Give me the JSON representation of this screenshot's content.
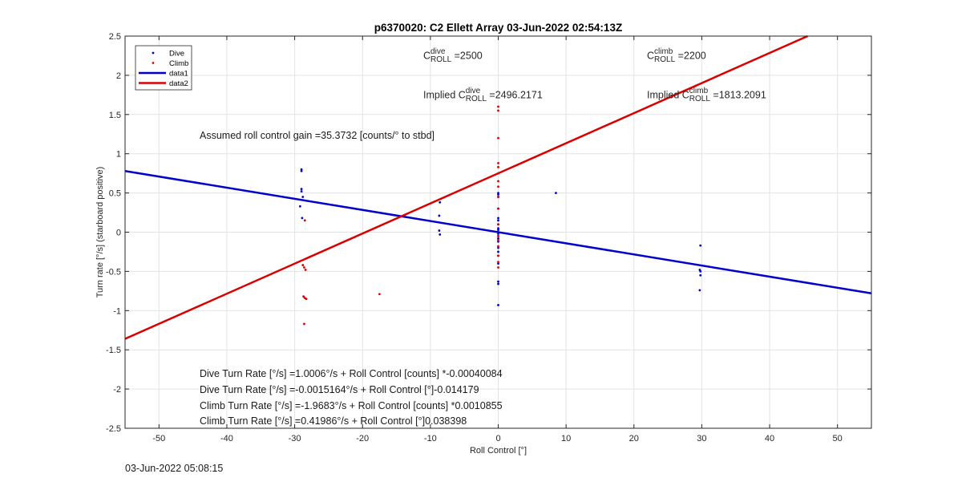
{
  "chart_data": {
    "type": "scatter",
    "title": "p6370020: C2 Ellett Array 03-Jun-2022 02:54:13Z",
    "xlabel": "Roll Control [°]",
    "ylabel": "Turn rate [°/s] (starboard positive)",
    "xlim": [
      -55,
      55
    ],
    "ylim": [
      -2.5,
      2.5
    ],
    "xticks": [
      "-50",
      "-40",
      "-30",
      "-20",
      "-10",
      "0",
      "10",
      "20",
      "30",
      "40",
      "50"
    ],
    "yticks": [
      "-2.5",
      "-2",
      "-1.5",
      "-1",
      "-0.5",
      "0",
      "0.5",
      "1",
      "1.5",
      "2",
      "2.5"
    ],
    "grid": true,
    "legend_position": "top-left",
    "legend": [
      "Dive",
      "Climb",
      "data1",
      "data2"
    ],
    "series": [
      {
        "name": "Dive",
        "kind": "points",
        "color": "#0000cc",
        "x": [
          -29,
          -29,
          -29,
          -29,
          -28.8,
          -29.2,
          -28.9,
          -8.6,
          -8.7,
          -8.7,
          -8.6,
          0,
          0,
          0,
          0,
          0,
          0,
          0,
          0,
          0,
          0,
          0,
          0,
          0,
          0,
          0,
          0,
          0,
          0,
          0,
          0,
          0,
          8.5,
          29.8,
          29.7,
          29.8,
          29.8,
          29.7
        ],
        "y": [
          0.8,
          0.78,
          0.55,
          0.52,
          0.45,
          0.33,
          0.18,
          0.38,
          0.21,
          0.02,
          -0.03,
          0.5,
          0.48,
          0.45,
          0.3,
          0.18,
          0.1,
          0.05,
          0.03,
          0.0,
          -0.02,
          -0.05,
          -0.08,
          -0.12,
          -0.2,
          -0.25,
          -0.3,
          -0.4,
          -0.63,
          -0.66,
          -0.93,
          0.15,
          0.5,
          -0.17,
          -0.48,
          -0.5,
          -0.55,
          -0.74
        ]
      },
      {
        "name": "Climb",
        "kind": "points",
        "color": "#dd0000",
        "x": [
          -28.5,
          -28.8,
          -28.6,
          -28.4,
          -28.7,
          -28.5,
          -28.3,
          -28.6,
          -17.5,
          0,
          0,
          0,
          0,
          0,
          0,
          0,
          0,
          0,
          0,
          0,
          0,
          0,
          0,
          0,
          0,
          0
        ],
        "y": [
          0.15,
          -0.42,
          -0.45,
          -0.48,
          -0.82,
          -0.84,
          -0.85,
          -1.17,
          -0.79,
          1.6,
          1.55,
          1.2,
          0.88,
          0.83,
          0.75,
          0.65,
          0.58,
          0.45,
          0.3,
          0.1,
          -0.05,
          -0.1,
          -0.18,
          -0.3,
          -0.38,
          -0.45
        ]
      },
      {
        "name": "data1",
        "kind": "line",
        "color": "#0000cc",
        "x": [
          -55,
          55
        ],
        "y": [
          0.78,
          -0.78
        ]
      },
      {
        "name": "data2",
        "kind": "line",
        "color": "#d90000",
        "x": [
          -55,
          45.6
        ],
        "y": [
          -1.36,
          2.5
        ]
      }
    ]
  },
  "annotations": {
    "c_dive_label": "C",
    "c_dive_sup": "dive",
    "c_dive_sub": "ROLL",
    "c_dive_val": " =2500",
    "c_climb_label": "C",
    "c_climb_sup": "climb",
    "c_climb_sub": "ROLL",
    "c_climb_val": " =2200",
    "implied_dive_prefix": "Implied C",
    "implied_dive_sup": "dive",
    "implied_dive_sub": "ROLL",
    "implied_dive_val": " =2496.2171",
    "implied_climb_prefix": "Implied C",
    "implied_climb_sup": "climb",
    "implied_climb_sub": "ROLL",
    "implied_climb_val": " =1813.2091",
    "gain": "Assumed roll control gain =35.3732 [counts/° to stbd]",
    "eq1": "Dive Turn Rate [°/s] =1.0006°/s + Roll Control [counts] *-0.00040084",
    "eq2": "Dive Turn Rate [°/s] =-0.0015164°/s + Roll Control [°]-0.014179",
    "eq3": "Climb Turn Rate [°/s] =-1.9683°/s + Roll Control [counts] *0.0010855",
    "eq4": "Climb Turn Rate [°/s] =0.41986°/s + Roll Control [°]0.038398"
  },
  "footer": "03-Jun-2022 05:08:15"
}
